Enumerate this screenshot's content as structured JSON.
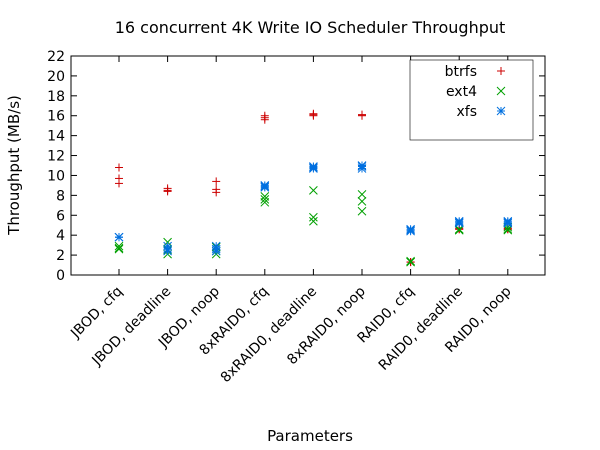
{
  "chart_data": {
    "type": "scatter",
    "title": "16 concurrent 4K Write IO Scheduler Throughput",
    "xlabel": "Parameters",
    "ylabel": "Throughput (MB/s)",
    "ylim": [
      0,
      22
    ],
    "yticks": [
      0,
      2,
      4,
      6,
      8,
      10,
      12,
      14,
      16,
      18,
      20,
      22
    ],
    "categories": [
      "JBOD, cfq",
      "JBOD, deadline",
      "JBOD, noop",
      "8xRAID0, cfq",
      "8xRAID0, deadline",
      "8xRAID0, noop",
      "RAID0, cfq",
      "RAID0, deadline",
      "RAID0, noop"
    ],
    "grid": false,
    "legend_position": "top-right",
    "series": [
      {
        "name": "btrfs",
        "marker": "plus",
        "color": "#cc0000",
        "values": [
          [
            10.8,
            9.7,
            9.2
          ],
          [
            8.7,
            8.5,
            8.4
          ],
          [
            9.4,
            8.6,
            8.3
          ],
          [
            16.0,
            15.8,
            15.6
          ],
          [
            16.2,
            16.1,
            16.0
          ],
          [
            16.1,
            16.1,
            16.0
          ],
          [
            1.3,
            1.3,
            1.3
          ],
          [
            4.7,
            4.6,
            4.6
          ],
          [
            4.7,
            4.6,
            4.6
          ]
        ]
      },
      {
        "name": "ext4",
        "marker": "cross",
        "color": "#00a000",
        "values": [
          [
            2.9,
            2.7,
            2.6
          ],
          [
            3.3,
            2.5,
            2.1
          ],
          [
            2.8,
            2.4,
            2.1
          ],
          [
            7.9,
            7.6,
            7.3
          ],
          [
            8.5,
            5.8,
            5.4
          ],
          [
            8.1,
            7.4,
            6.4
          ],
          [
            1.4,
            1.3,
            1.3
          ],
          [
            4.6,
            4.5,
            4.5
          ],
          [
            4.8,
            4.6,
            4.5
          ]
        ]
      },
      {
        "name": "xfs",
        "marker": "asterisk",
        "color": "#0070e0",
        "values": [
          [
            3.8,
            3.8,
            3.8
          ],
          [
            2.9,
            2.6,
            2.4
          ],
          [
            2.9,
            2.6,
            2.4
          ],
          [
            9.0,
            8.9,
            8.8
          ],
          [
            10.9,
            10.8,
            10.7
          ],
          [
            11.0,
            10.9,
            10.7
          ],
          [
            4.6,
            4.5,
            4.4
          ],
          [
            5.4,
            5.3,
            5.2
          ],
          [
            5.4,
            5.3,
            5.2
          ]
        ]
      }
    ]
  }
}
